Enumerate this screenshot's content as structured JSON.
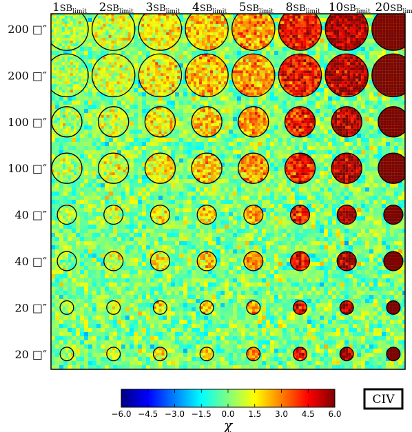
{
  "chart_data": {
    "type": "heatmap",
    "columns": [
      {
        "num": "1",
        "sub": "limit",
        "factor": 1
      },
      {
        "num": "2",
        "sub": "limit",
        "factor": 2
      },
      {
        "num": "3",
        "sub": "limit",
        "factor": 3
      },
      {
        "num": "4",
        "sub": "limit",
        "factor": 4
      },
      {
        "num": "5",
        "sub": "limit",
        "factor": 5
      },
      {
        "num": "8",
        "sub": "limit",
        "factor": 8
      },
      {
        "num": "10",
        "sub": "limit",
        "factor": 10
      },
      {
        "num": "20",
        "sub": "limit",
        "factor": 20
      }
    ],
    "column_prefix": "SB",
    "rows": [
      {
        "label": "200 □″",
        "area": 200
      },
      {
        "label": "200 □″",
        "area": 200
      },
      {
        "label": "100 □″",
        "area": 100
      },
      {
        "label": "100 □″",
        "area": 100
      },
      {
        "label": "40 □″",
        "area": 40
      },
      {
        "label": "40 □″",
        "area": 40
      },
      {
        "label": "20 □″",
        "area": 20
      },
      {
        "label": "20 □″",
        "area": 20
      }
    ],
    "colorbar": {
      "label": "χ",
      "min": -6.0,
      "max": 6.0,
      "ticks": [
        "−6.0",
        "−4.5",
        "−3.0",
        "−1.5",
        "0.0",
        "1.5",
        "3.0",
        "4.5",
        "6.0"
      ],
      "colormap": [
        "#00007f",
        "#0000ff",
        "#007fff",
        "#00ffff",
        "#7fff7f",
        "#ffff00",
        "#ff7f00",
        "#ff0000",
        "#7f0000"
      ]
    },
    "line_label": "CIV",
    "background_level": 0.0
  }
}
